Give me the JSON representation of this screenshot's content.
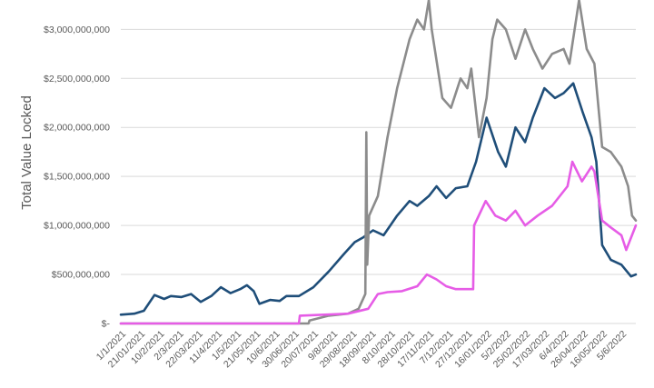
{
  "chart_data": {
    "type": "line",
    "ylabel": "Total Value Locked",
    "xlabel": "",
    "title": "",
    "ylim": [
      0,
      3300000000
    ],
    "grid": true,
    "legend": "none",
    "y_ticks": [
      "$-",
      "$500,000,000",
      "$1,000,000,000",
      "$1,500,000,000",
      "$2,000,000,000",
      "$2,500,000,000",
      "$3,000,000,000"
    ],
    "y_tick_values": [
      0,
      500000000,
      1000000000,
      1500000000,
      2000000000,
      2500000000,
      3000000000
    ],
    "x_tick_labels": [
      "1/1/2021",
      "21/01/2021",
      "10/2/2021",
      "2/3/2021",
      "22/03/2021",
      "11/4/2021",
      "1/5/2021",
      "21/05/2021",
      "10/6/2021",
      "30/06/2021",
      "20/07/2021",
      "9/8/2021",
      "29/08/2021",
      "18/09/2021",
      "8/10/2021",
      "28/10/2021",
      "17/11/2021",
      "7/12/2021",
      "27/12/2021",
      "16/01/2022",
      "5/2/2022",
      "25/02/2022",
      "17/03/2022",
      "6/4/2022",
      "26/04/2022",
      "16/05/2022",
      "5/6/2022"
    ],
    "x_tick_dates": [
      "2021-01-01",
      "2021-01-21",
      "2021-02-10",
      "2021-03-02",
      "2021-03-22",
      "2021-04-11",
      "2021-05-01",
      "2021-05-21",
      "2021-06-10",
      "2021-06-30",
      "2021-07-20",
      "2021-08-09",
      "2021-08-29",
      "2021-09-18",
      "2021-10-08",
      "2021-10-28",
      "2021-11-17",
      "2021-12-07",
      "2021-12-27",
      "2022-01-16",
      "2022-02-05",
      "2022-02-25",
      "2022-03-17",
      "2022-04-06",
      "2022-04-26",
      "2022-05-16",
      "2022-06-05"
    ],
    "x_range": [
      "2021-01-01",
      "2022-06-20"
    ],
    "colors": {
      "navy": "#1f4e79",
      "gray": "#8c8c8c",
      "magenta": "#e65ce6",
      "grid": "#d9d9d9",
      "text": "#595959"
    },
    "series": [
      {
        "color": "#1f4e79",
        "x": [
          "2021-01-01",
          "2021-01-15",
          "2021-01-25",
          "2021-02-05",
          "2021-02-15",
          "2021-02-22",
          "2021-03-05",
          "2021-03-15",
          "2021-03-25",
          "2021-04-05",
          "2021-04-15",
          "2021-04-25",
          "2021-05-05",
          "2021-05-12",
          "2021-05-19",
          "2021-05-25",
          "2021-06-05",
          "2021-06-15",
          "2021-06-22",
          "2021-07-05",
          "2021-07-20",
          "2021-08-05",
          "2021-08-20",
          "2021-09-01",
          "2021-09-10",
          "2021-09-20",
          "2021-10-01",
          "2021-10-15",
          "2021-10-28",
          "2021-11-05",
          "2021-11-17",
          "2021-11-25",
          "2021-12-05",
          "2021-12-15",
          "2021-12-27",
          "2022-01-05",
          "2022-01-16",
          "2022-01-28",
          "2022-02-05",
          "2022-02-15",
          "2022-02-25",
          "2022-03-05",
          "2022-03-17",
          "2022-03-28",
          "2022-04-06",
          "2022-04-16",
          "2022-04-26",
          "2022-05-05",
          "2022-05-10",
          "2022-05-16",
          "2022-05-25",
          "2022-06-05",
          "2022-06-15",
          "2022-06-20"
        ],
        "y": [
          90000000,
          100000000,
          130000000,
          290000000,
          250000000,
          280000000,
          270000000,
          300000000,
          220000000,
          280000000,
          370000000,
          310000000,
          350000000,
          390000000,
          330000000,
          200000000,
          240000000,
          230000000,
          280000000,
          280000000,
          370000000,
          530000000,
          700000000,
          830000000,
          880000000,
          950000000,
          900000000,
          1100000000,
          1250000000,
          1200000000,
          1300000000,
          1400000000,
          1280000000,
          1380000000,
          1400000000,
          1650000000,
          2100000000,
          1750000000,
          1600000000,
          2000000000,
          1850000000,
          2100000000,
          2400000000,
          2300000000,
          2350000000,
          2450000000,
          2150000000,
          1900000000,
          1650000000,
          800000000,
          650000000,
          600000000,
          480000000,
          500000000
        ]
      },
      {
        "color": "#8c8c8c",
        "x": [
          "2021-01-01",
          "2021-07-15",
          "2021-07-16",
          "2021-08-05",
          "2021-08-25",
          "2021-09-05",
          "2021-09-12",
          "2021-09-13",
          "2021-09-14",
          "2021-09-16",
          "2021-09-25",
          "2021-10-05",
          "2021-10-15",
          "2021-10-28",
          "2021-11-05",
          "2021-11-12",
          "2021-11-17",
          "2021-11-20",
          "2021-12-01",
          "2021-12-10",
          "2021-12-20",
          "2021-12-27",
          "2021-12-31",
          "2022-01-08",
          "2022-01-16",
          "2022-01-22",
          "2022-01-27",
          "2022-02-05",
          "2022-02-15",
          "2022-02-25",
          "2022-03-05",
          "2022-03-15",
          "2022-03-25",
          "2022-04-06",
          "2022-04-12",
          "2022-04-22",
          "2022-04-30",
          "2022-05-08",
          "2022-05-16",
          "2022-05-25",
          "2022-06-05",
          "2022-06-12",
          "2022-06-16",
          "2022-06-20"
        ],
        "y": [
          0,
          0,
          30000000,
          80000000,
          100000000,
          150000000,
          300000000,
          1950000000,
          600000000,
          1100000000,
          1300000000,
          1900000000,
          2400000000,
          2900000000,
          3100000000,
          3000000000,
          3300000000,
          3000000000,
          2300000000,
          2200000000,
          2500000000,
          2400000000,
          2600000000,
          1900000000,
          2300000000,
          2900000000,
          3100000000,
          3000000000,
          2700000000,
          3000000000,
          2800000000,
          2600000000,
          2750000000,
          2800000000,
          2650000000,
          3300000000,
          2800000000,
          2650000000,
          1800000000,
          1750000000,
          1600000000,
          1400000000,
          1100000000,
          1050000000
        ]
      },
      {
        "color": "#e65ce6",
        "x": [
          "2021-01-01",
          "2021-07-05",
          "2021-07-06",
          "2021-08-25",
          "2021-09-15",
          "2021-09-25",
          "2021-10-05",
          "2021-10-20",
          "2021-11-05",
          "2021-11-15",
          "2021-11-25",
          "2021-12-05",
          "2021-12-15",
          "2022-01-02",
          "2022-01-03",
          "2022-01-15",
          "2022-01-25",
          "2022-02-05",
          "2022-02-15",
          "2022-02-25",
          "2022-03-10",
          "2022-03-25",
          "2022-04-10",
          "2022-04-15",
          "2022-04-25",
          "2022-05-05",
          "2022-05-08",
          "2022-05-16",
          "2022-05-25",
          "2022-06-05",
          "2022-06-10",
          "2022-06-20"
        ],
        "y": [
          0,
          0,
          80000000,
          100000000,
          150000000,
          300000000,
          320000000,
          330000000,
          380000000,
          500000000,
          450000000,
          380000000,
          350000000,
          350000000,
          1000000000,
          1250000000,
          1100000000,
          1050000000,
          1150000000,
          1000000000,
          1100000000,
          1200000000,
          1400000000,
          1650000000,
          1450000000,
          1600000000,
          1550000000,
          1050000000,
          980000000,
          900000000,
          750000000,
          1000000000
        ]
      }
    ]
  }
}
